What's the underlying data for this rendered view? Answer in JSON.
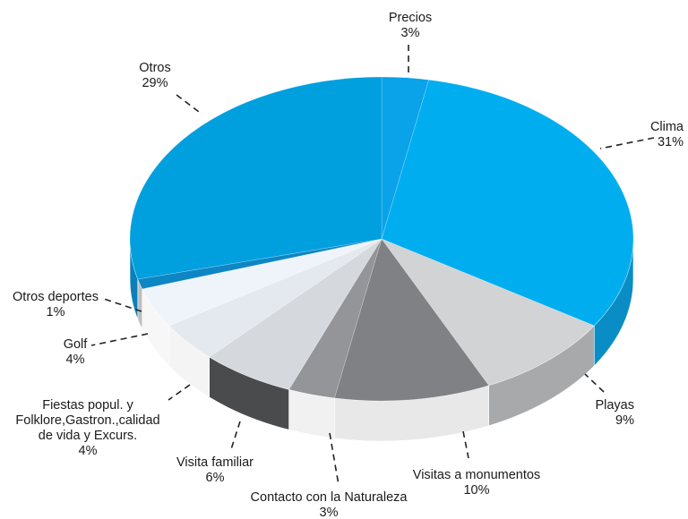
{
  "chart_data": {
    "type": "pie",
    "style": "3d",
    "legend": "none",
    "slices": [
      {
        "label": "Precios",
        "value": 3,
        "value_label": "3%",
        "color": "#0aa2e8",
        "side_color": "#0b84be"
      },
      {
        "label": "Clima",
        "value": 31,
        "value_label": "31%",
        "color": "#00aeef",
        "side_color": "#0a8dc5"
      },
      {
        "label": "Playas",
        "value": 9,
        "value_label": "9%",
        "color": "#d2d3d5",
        "side_color": "#a8a9ab"
      },
      {
        "label": "Visitas a monumentos",
        "value": 10,
        "value_label": "10%",
        "color": "#808184",
        "side_color": "#e8e8e8"
      },
      {
        "label": "Contacto con la Naturaleza",
        "value": 3,
        "value_label": "3%",
        "color": "#939598",
        "side_color": "#f1f1f2"
      },
      {
        "label": "Visita familiar",
        "value": 6,
        "value_label": "6%",
        "color": "#d5d9de",
        "side_color": "#4a4b4d"
      },
      {
        "label": "Fiestas popul. y Folklore,Gastron.,calidad de vida y Excurs.",
        "label_lines": [
          "Fiestas popul. y",
          "Folklore,Gastron.,calidad",
          "de vida y Excurs."
        ],
        "value": 4,
        "value_label": "4%",
        "color": "#e4e9ef",
        "side_color": "#f4f4f4"
      },
      {
        "label": "Golf",
        "value": 4,
        "value_label": "4%",
        "color": "#eef4f9",
        "side_color": "#f7f7f7"
      },
      {
        "label": "Otros deportes",
        "value": 1,
        "value_label": "1%",
        "color": "#0d86c4",
        "side_color": "#bcbdc0"
      },
      {
        "label": "Otros",
        "value": 29,
        "value_label": "29%",
        "color": "#009fde",
        "side_color": "#0a80b8"
      }
    ]
  }
}
